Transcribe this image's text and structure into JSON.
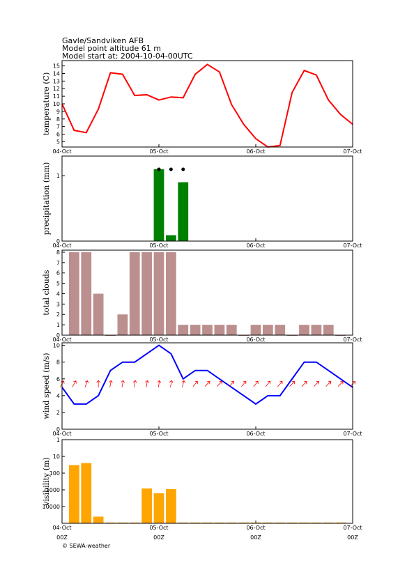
{
  "header": {
    "lines": [
      "Gavle/Sandviken AFB",
      "Model point altitude  61 m",
      "Model start at: 2004-10-04-00UTC"
    ]
  },
  "footer": "© SEWA-weather",
  "chart_data": [
    {
      "type": "line",
      "ylabel": "temperature (C)",
      "color": "#ff0000",
      "x": [
        0,
        3,
        6,
        9,
        12,
        15,
        18,
        21,
        24,
        27,
        30,
        33,
        36,
        39,
        42,
        45,
        48,
        51,
        54,
        57,
        60,
        63,
        66,
        69,
        72
      ],
      "values": [
        10.0,
        6.5,
        6.2,
        9.3,
        14.1,
        13.9,
        11.1,
        11.2,
        10.5,
        10.9,
        10.8,
        13.9,
        15.2,
        14.2,
        9.9,
        7.3,
        5.4,
        4.3,
        4.5,
        11.5,
        14.4,
        13.8,
        10.5,
        8.6,
        7.3
      ],
      "xlim": [
        0,
        72
      ],
      "ylim": [
        4.3,
        15.7
      ],
      "yticks": [
        5,
        6,
        7,
        8,
        9,
        10,
        11,
        12,
        13,
        14,
        15
      ],
      "xticks": [
        {
          "value": 0,
          "label": "04-Oct"
        },
        {
          "value": 24,
          "label": "05-Oct"
        },
        {
          "value": 48,
          "label": "06-Oct"
        },
        {
          "value": 72,
          "label": "07-Oct"
        }
      ]
    },
    {
      "type": "bar",
      "ylabel": "precipitation (mm)",
      "color": "#008000",
      "x": [
        24,
        27,
        30
      ],
      "values": [
        1.1,
        0.09,
        0.9
      ],
      "xlim": [
        0,
        72
      ],
      "ylim": [
        0,
        1.3
      ],
      "yticks": [
        0,
        1
      ],
      "xticks": [
        {
          "value": 0,
          "label": "04-Oct"
        },
        {
          "value": 24,
          "label": "05-Oct"
        },
        {
          "value": 48,
          "label": "06-Oct"
        },
        {
          "value": 72,
          "label": "07-Oct"
        }
      ]
    },
    {
      "type": "bar",
      "ylabel": "total clouds",
      "color": "#bc8f8f",
      "x": [
        3,
        6,
        9,
        12,
        15,
        18,
        21,
        24,
        27,
        30,
        33,
        36,
        39,
        42,
        45,
        48,
        51,
        54,
        57,
        60,
        63,
        66,
        69
      ],
      "values": [
        8,
        8,
        4,
        0,
        2,
        8,
        8,
        8,
        8,
        1,
        1,
        1,
        1,
        1,
        0,
        1,
        1,
        1,
        0,
        1,
        1,
        1,
        0
      ],
      "xlim": [
        0,
        72
      ],
      "ylim": [
        0,
        8.2
      ],
      "yticks": [
        0,
        1,
        2,
        3,
        4,
        5,
        6,
        7,
        8
      ],
      "xticks": [
        {
          "value": 0,
          "label": "04-Oct"
        },
        {
          "value": 24,
          "label": "05-Oct"
        },
        {
          "value": 48,
          "label": "06-Oct"
        },
        {
          "value": 72,
          "label": "07-Oct"
        }
      ]
    },
    {
      "type": "line",
      "ylabel": "wind speed (m/s)",
      "color": "#0000ff",
      "arrow_color": "#ff0000",
      "x": [
        0,
        3,
        6,
        9,
        12,
        15,
        18,
        21,
        24,
        27,
        30,
        33,
        36,
        39,
        42,
        45,
        48,
        51,
        54,
        57,
        60,
        63,
        66,
        69,
        72
      ],
      "values": [
        5,
        3,
        3,
        4,
        7,
        8,
        8,
        9,
        10,
        9,
        6,
        7,
        7,
        6,
        5,
        4,
        3,
        4,
        4,
        6,
        8,
        8,
        7,
        6,
        5
      ],
      "wind_direction": [
        30,
        30,
        20,
        0,
        10,
        10,
        10,
        10,
        10,
        10,
        15,
        40,
        45,
        45,
        40,
        40,
        40,
        40,
        40,
        45,
        45,
        45,
        45,
        45,
        45
      ],
      "xlim": [
        0,
        72
      ],
      "ylim": [
        0,
        10.3
      ],
      "yticks": [
        0,
        2,
        4,
        6,
        8,
        10
      ],
      "xticks": [
        {
          "value": 0,
          "label": "04-Oct"
        },
        {
          "value": 24,
          "label": "05-Oct"
        },
        {
          "value": 48,
          "label": "06-Oct"
        },
        {
          "value": 72,
          "label": "07-Oct"
        }
      ]
    },
    {
      "type": "bar",
      "ylabel": "visibility (m)",
      "color": "#ffa500",
      "log_scale": true,
      "y_reversed": true,
      "x": [
        3,
        6,
        9,
        12,
        15,
        18,
        21,
        24,
        27,
        30,
        33,
        36,
        39,
        42,
        45,
        48,
        51,
        54,
        57,
        60,
        63,
        66,
        69
      ],
      "values": [
        33,
        25,
        40000,
        90000,
        90000,
        90000,
        830,
        1600,
        900,
        90000,
        90000,
        90000,
        90000,
        90000,
        90000,
        90000,
        90000,
        90000,
        90000,
        90000,
        90000,
        90000,
        90000
      ],
      "xlim": [
        0,
        72
      ],
      "ylim": [
        1,
        100000
      ],
      "yticks": [
        1,
        10,
        100,
        1000,
        10000
      ],
      "xticks": [
        {
          "value": 0,
          "label": "04-Oct"
        },
        {
          "value": 24,
          "label": "05-Oct"
        },
        {
          "value": 48,
          "label": "06-Oct"
        },
        {
          "value": 72,
          "label": "07-Oct"
        }
      ],
      "xticks_utc": [
        {
          "value": 0,
          "label": "00Z"
        },
        {
          "value": 24,
          "label": "00Z"
        },
        {
          "value": 48,
          "label": "00Z"
        },
        {
          "value": 72,
          "label": "00Z"
        }
      ]
    }
  ]
}
